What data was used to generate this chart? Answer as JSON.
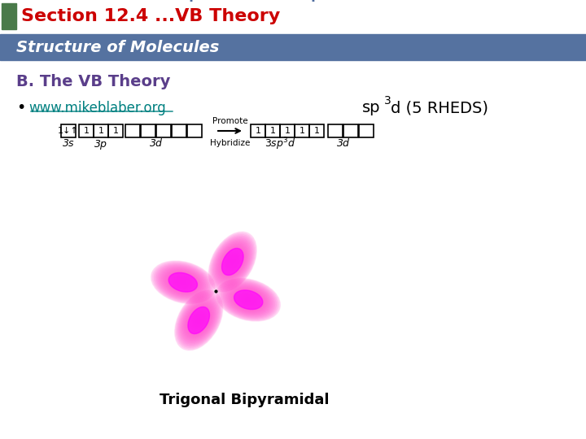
{
  "title_text": "Section 12.4 ...VB Theory",
  "title_text_color": "#cc0000",
  "green_square_color": "#4a7a4a",
  "subtitle_bar_color": "#5572a0",
  "subtitle_text": "Structure of Molecules",
  "subtitle_text_color": "#ffffff",
  "section_title": "B. The VB Theory",
  "section_title_color": "#5a3e8a",
  "bullet_link": "www.mikeblaber.org",
  "link_color": "#008080",
  "sp3d_color": "#000000",
  "caption_text": "Trigonal Bipyramidal",
  "caption_color": "#000000",
  "bg_color": "#ffffff",
  "arc_color": "#4d6b9e",
  "petal_color": "#ff44cc",
  "petal_core_color": "#ff00ff"
}
